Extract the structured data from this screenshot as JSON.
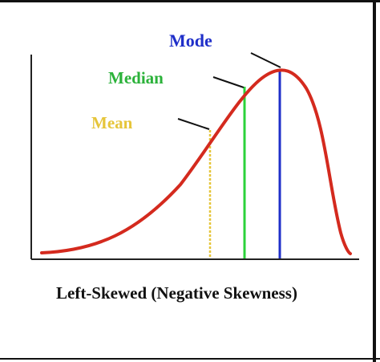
{
  "diagram": {
    "caption": "Left-Skewed (Negative Skewness)",
    "labels": {
      "mode": "Mode",
      "median": "Median",
      "mean": "Mean"
    },
    "colors": {
      "curve": "#d42a1e",
      "mode": "#1f2fc9",
      "median": "#2bd23a",
      "mean": "#e6c53a",
      "axis": "#222222",
      "pointer": "#111111",
      "caption": "#111111",
      "frame": "#111111"
    }
  }
}
